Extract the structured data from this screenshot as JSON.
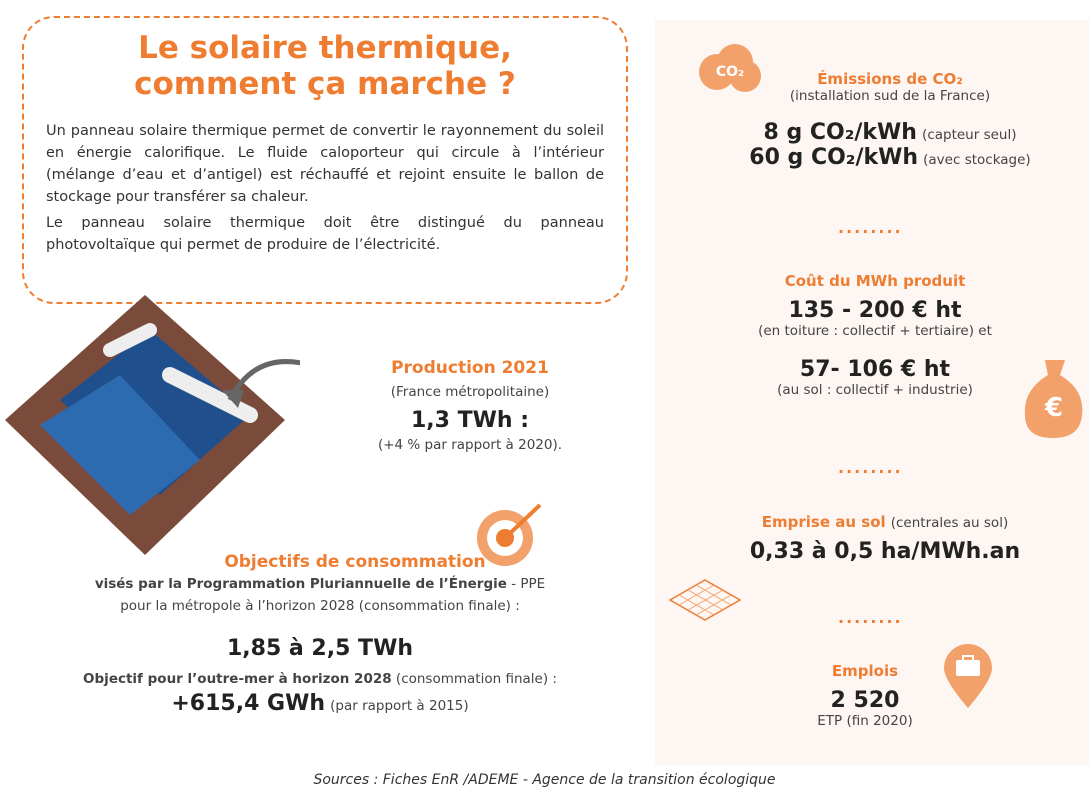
{
  "header": {
    "title_lines": [
      "Le solaire thermique,",
      "comment ça marche ?"
    ]
  },
  "intro": {
    "paragraphs": [
      "Un panneau solaire thermique permet de convertir le rayonnement du soleil en énergie calorifique. Le fluide caloporteur qui circule à l’intérieur (mélange d’eau et d’antigel) est réchauffé et rejoint ensuite le ballon de stockage pour transférer sa chaleur.",
      "Le panneau solaire thermique doit être distingué du panneau photovoltaïque qui permet de produire de l’électricité."
    ]
  },
  "production": {
    "title": "Production 2021",
    "scope": "(France métropolitaine)",
    "value": "1,3 TWh :",
    "note": "(+4 % par rapport à 2020)."
  },
  "objectives": {
    "title": "Objectifs de consommation",
    "line1_bold": "visés par la Programmation Pluriannuelle de l’Énergie",
    "line1_rest": "- PPE",
    "line2": "pour la métropole à l’horizon 2028 (consommation finale) :",
    "value": "1,85 à 2,5 TWh",
    "overseas_label": "Objectif pour l’outre-mer à horizon 2028",
    "overseas_note": "(consommation finale) :",
    "overseas_value": "+615,4 GWh",
    "overseas_compare": "(par rapport à 2015)"
  },
  "emissions": {
    "icon_label": "CO₂",
    "title": "Émissions de CO₂",
    "note": "(installation sud de la France)",
    "rows": [
      {
        "value": "8 g CO₂/kWh",
        "note": "(capteur seul)"
      },
      {
        "value": "60 g CO₂/kWh",
        "note": "(avec stockage)"
      }
    ]
  },
  "cost": {
    "title": "Coût du MWh produit",
    "icon_label": "€",
    "rows": [
      {
        "value": "135 - 200 € ht",
        "note": "(en toiture : collectif + tertiaire) et"
      },
      {
        "value": "57- 106 € ht",
        "note": "(au sol : collectif + industrie)"
      }
    ]
  },
  "land": {
    "title": "Emprise au sol",
    "note": "(centrales au sol)",
    "value": "0,33 à 0,5 ha/MWh.an"
  },
  "jobs": {
    "title": "Emplois",
    "value": "2 520",
    "note": "ETP (fin 2020)"
  },
  "sources": "Sources : Fiches EnR /ADEME - Agence de la transition écologique"
}
